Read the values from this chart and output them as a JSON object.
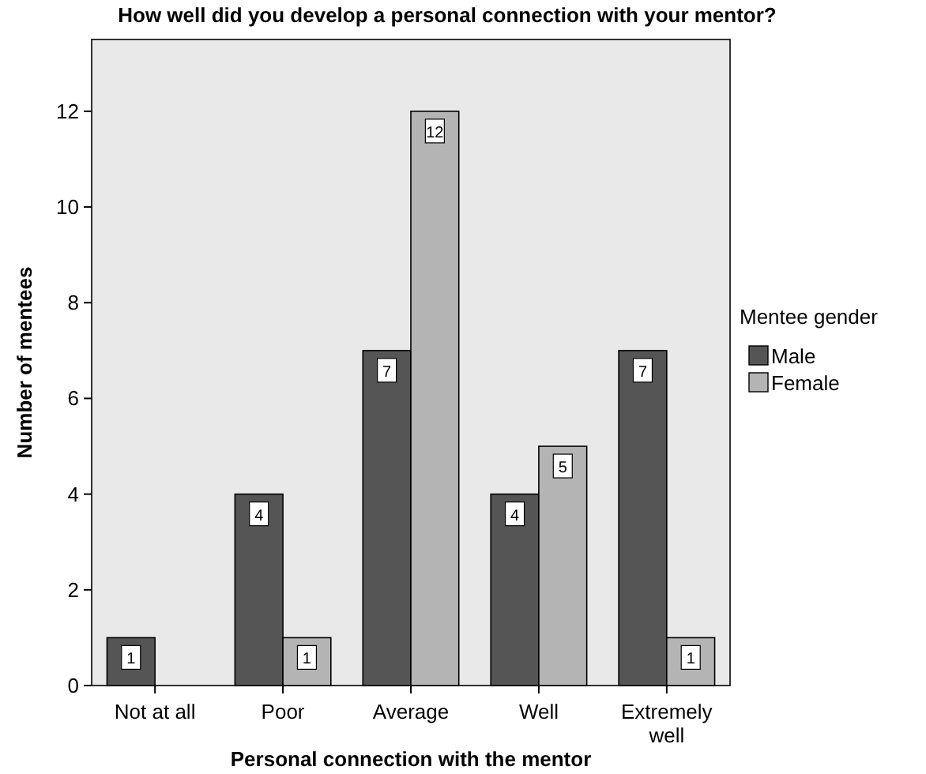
{
  "chart_data": {
    "type": "bar",
    "title": "How well did you develop a personal connection with your mentor?",
    "xlabel": "Personal connection with the mentor",
    "ylabel": "Number of mentees",
    "legend_title": "Mentee gender",
    "categories": [
      "Not at all",
      "Poor",
      "Average",
      "Well",
      "Extremely well"
    ],
    "series": [
      {
        "name": "Male",
        "color": "#555555",
        "values": [
          1,
          4,
          7,
          4,
          7
        ]
      },
      {
        "name": "Female",
        "color": "#b4b4b4",
        "values": [
          null,
          1,
          12,
          5,
          1
        ]
      }
    ],
    "ylim": [
      0,
      13.5
    ],
    "yticks": [
      0,
      2,
      4,
      6,
      8,
      10,
      12
    ],
    "grid": false,
    "legend": "right",
    "data_labels": true
  }
}
